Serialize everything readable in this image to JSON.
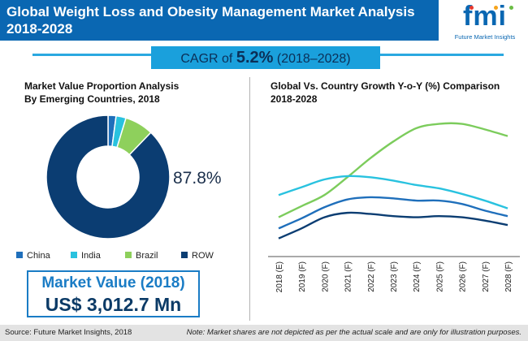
{
  "header": {
    "title": "Global Weight Loss and Obesity Management Market Analysis 2018-2028",
    "logo_text": "fmi",
    "logo_subtitle": "Future Market Insights",
    "logo_colors": [
      "#e8392e",
      "#f6a31b",
      "#6cbd45"
    ]
  },
  "cagr": {
    "prefix": "CAGR of",
    "value": "5.2%",
    "period": "(2018–2028)"
  },
  "colors": {
    "china": "#1f6fbb",
    "india": "#29c2df",
    "brazil": "#8ed05c",
    "row": "#0b3d72",
    "global": "#7ccc5c",
    "accent": "#0a67b2"
  },
  "left_panel": {
    "title_line1": "Market Value Proportion Analysis",
    "title_line2": "By Emerging Countries, 2018",
    "callout": "87.8%",
    "market_value_label": "Market  Value (2018)",
    "market_value": "US$ 3,012.7 Mn"
  },
  "right_panel": {
    "title_line1": "Global Vs. Country Growth Y-o-Y (%) Comparison",
    "title_line2": "2018-2028"
  },
  "footer": {
    "source": "Source: Future Market Insights, 2018",
    "note": "Note: Market shares are not depicted as per the actual scale and are only for illustration purposes."
  },
  "chart_data": [
    {
      "type": "pie",
      "categories": [
        "China",
        "India",
        "Brazil",
        "ROW"
      ],
      "values": [
        2.1,
        2.6,
        7.5,
        87.8
      ],
      "data_labels": [
        "",
        "",
        "",
        "87.8%"
      ]
    },
    {
      "type": "line",
      "categories": [
        "2018 (E)",
        "2019 (F)",
        "2020 (F)",
        "2021 (F)",
        "2022 (F)",
        "2023 (F)",
        "2024 (F)",
        "2025 (F)",
        "2026 (F)",
        "2027 (F)",
        "2028 (F)"
      ],
      "y_axis_visible": false,
      "ylim": [
        0,
        100
      ],
      "series": [
        {
          "values": [
            20,
            30,
            40,
            56,
            73,
            88,
            100,
            104,
            104,
            99,
            93
          ]
        },
        {
          "values": [
            40,
            47,
            54,
            57,
            56,
            53,
            49,
            46,
            41,
            35,
            28
          ]
        },
        {
          "values": [
            10,
            19,
            29,
            36,
            38,
            37,
            35,
            35,
            32,
            26,
            21
          ]
        },
        {
          "values": [
            1,
            10,
            20,
            24,
            23,
            21,
            20,
            21,
            20,
            17,
            13
          ]
        }
      ],
      "series_colors": [
        "#7ccc5c",
        "#29c2df",
        "#1f6fbb",
        "#0b3d72"
      ]
    }
  ]
}
